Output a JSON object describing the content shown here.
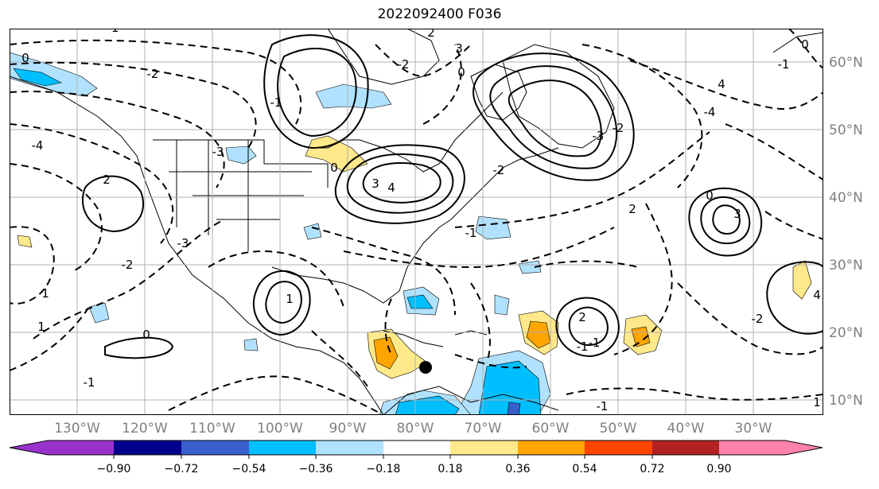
{
  "title": "2022092400 F036",
  "longitude_labels": [
    "130°W",
    "120°W",
    "110°W",
    "100°W",
    "90°W",
    "80°W",
    "70°W",
    "60°W",
    "50°W",
    "40°W",
    "30°W"
  ],
  "latitude_labels": [
    "60°N",
    "50°N",
    "40°N",
    "30°N",
    "20°N",
    "10°N"
  ],
  "contour_labels": [
    "-1",
    "-2",
    "-3",
    "-4",
    "0",
    "1",
    "2",
    "3",
    "4",
    "-1",
    "0",
    "1",
    "-2",
    "-1",
    "1",
    "2",
    "-3",
    "-1",
    "0",
    "-2",
    "2",
    "3",
    "-1",
    "0",
    "-4",
    "-2",
    "4",
    "-3",
    "-2",
    "0",
    "3",
    "-1",
    "2",
    "4",
    "-1",
    "0",
    "-2",
    "-1",
    "1"
  ],
  "colorbar": {
    "tick_labels": [
      "−0.90",
      "−0.72",
      "−0.54",
      "−0.36",
      "−0.18",
      "0.18",
      "0.36",
      "0.54",
      "0.72",
      "0.90"
    ],
    "colors": [
      "#9932cc",
      "#00008b",
      "#3a5fcd",
      "#00bfff",
      "#b0e2ff",
      "#ffffff",
      "#ffe98a",
      "#ffa500",
      "#ff4500",
      "#b22222",
      "#ff82ab"
    ],
    "under_color": "#9932cc",
    "over_color": "#ff82ab"
  },
  "marker": {
    "description": "filled black circle",
    "lon_w": 80,
    "lat_n": 15
  }
}
